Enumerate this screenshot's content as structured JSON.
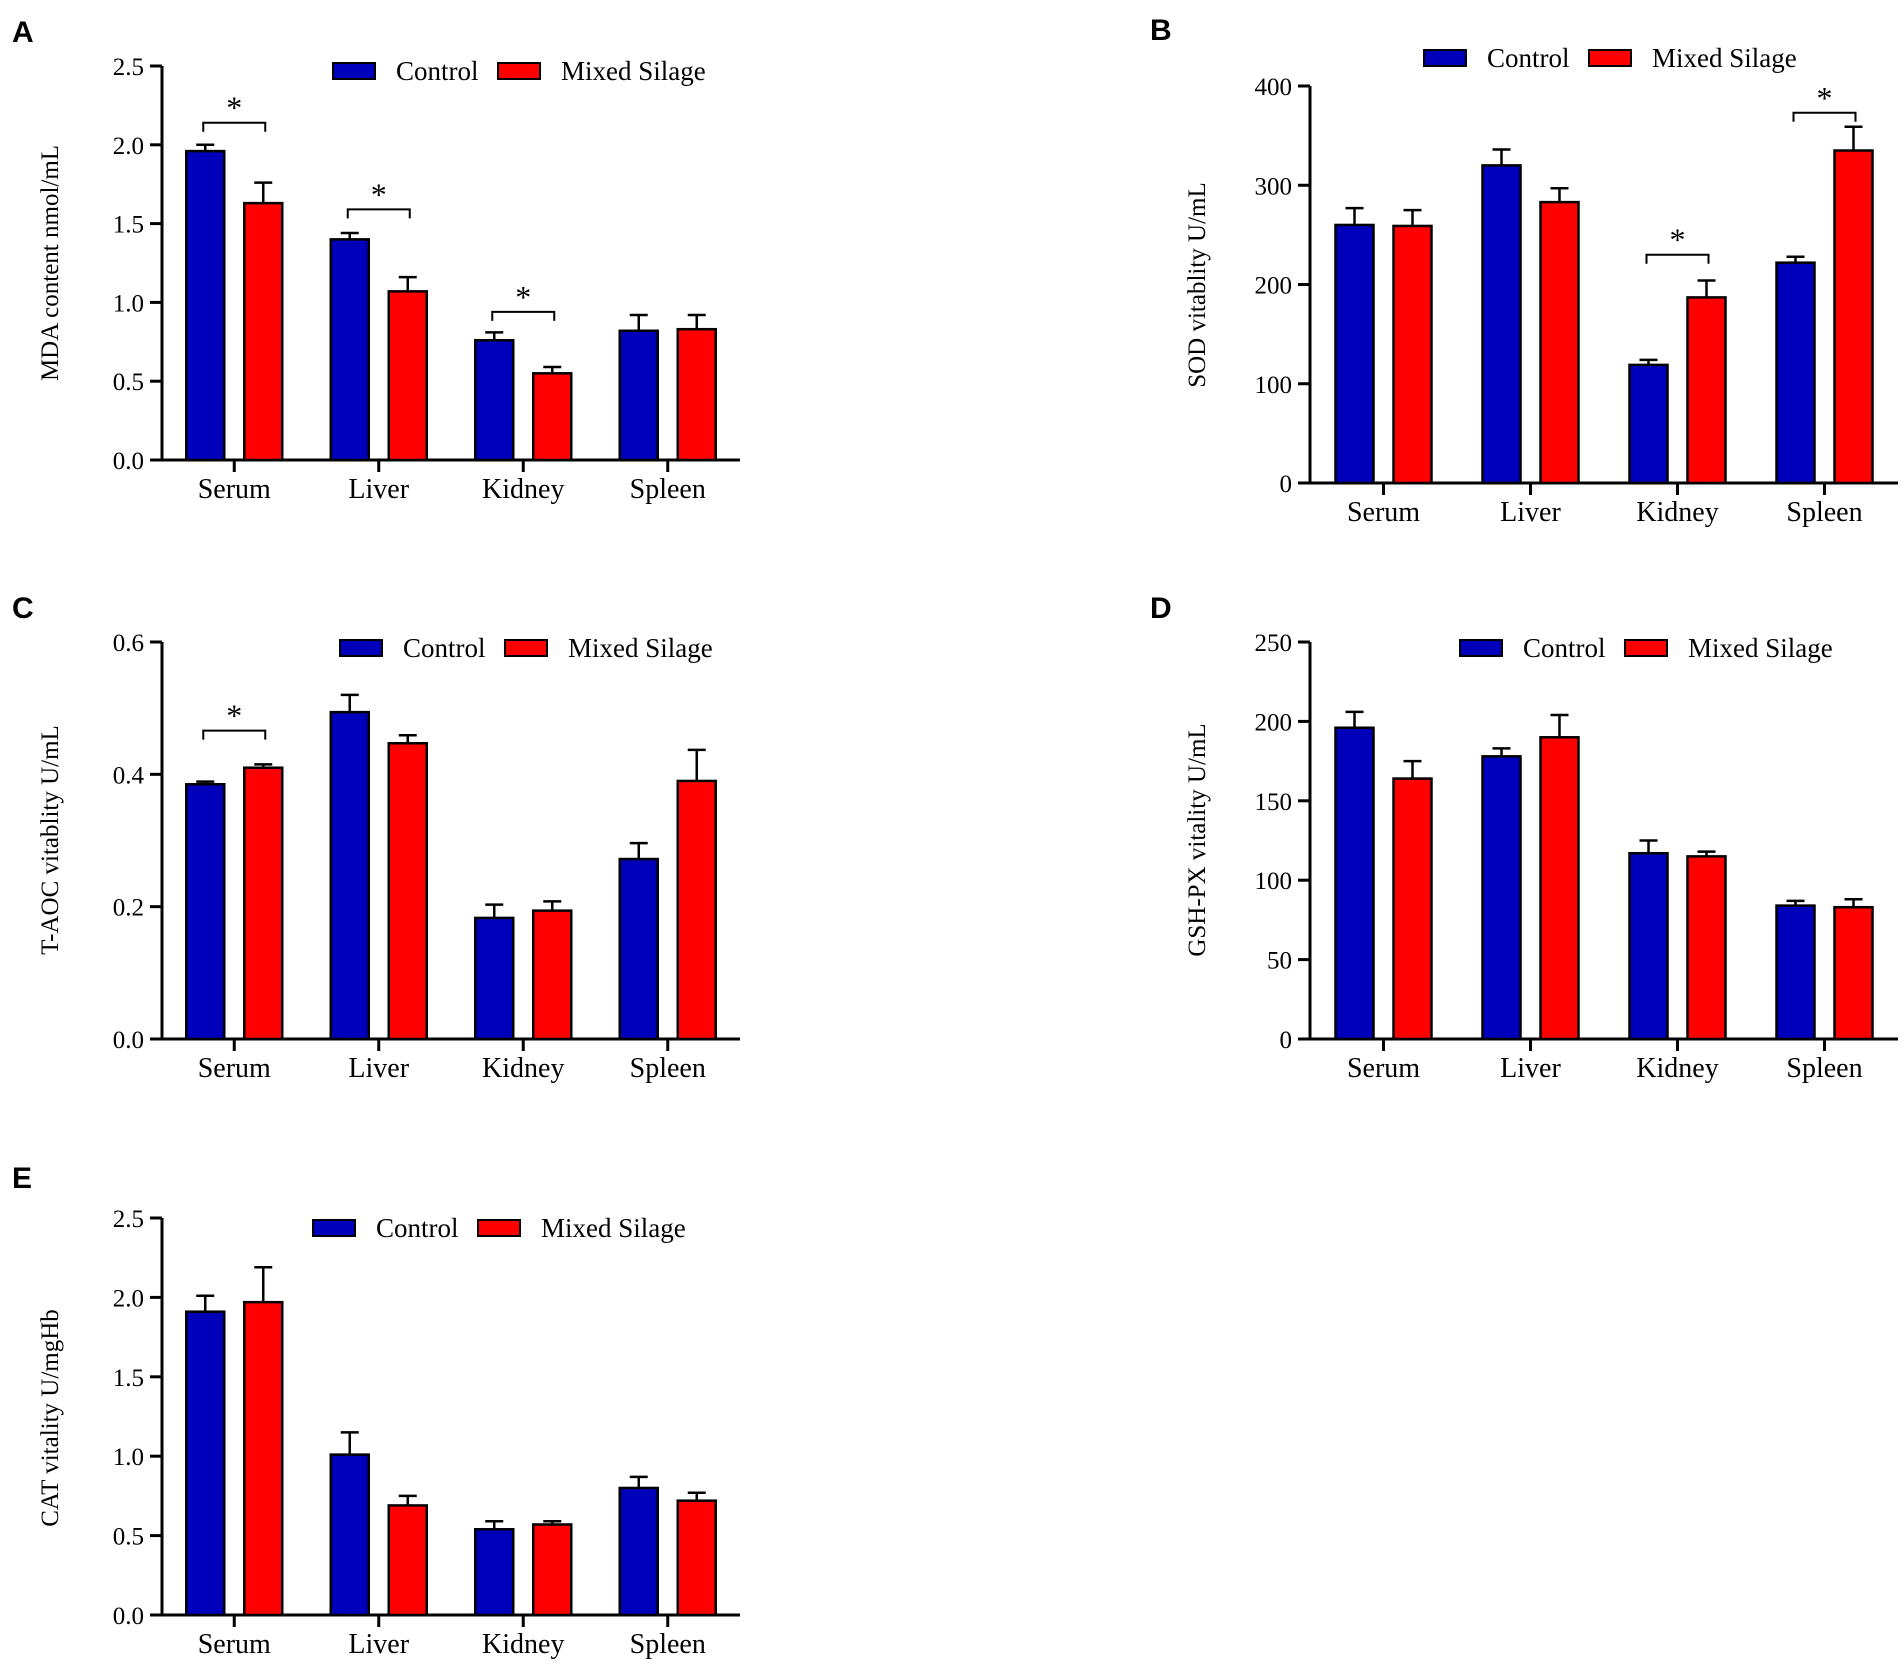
{
  "colors": {
    "control": "#0000bb",
    "treatment": "#ff0000",
    "axis": "#000000"
  },
  "legend": {
    "control": "Control",
    "treatment": "Mixed Silage"
  },
  "chart_data": [
    {
      "panel": "A",
      "type": "bar",
      "ylabel": "MDA content nmol/mL",
      "ylim": [
        0,
        2.5
      ],
      "yticks": [
        "0.0",
        "0.5",
        "1.0",
        "1.5",
        "2.0",
        "2.5"
      ],
      "categories": [
        "Serum",
        "Liver",
        "Kidney",
        "Spleen"
      ],
      "series": [
        {
          "name": "Control",
          "values": [
            1.96,
            1.4,
            0.76,
            0.82
          ],
          "errors": [
            0.04,
            0.04,
            0.05,
            0.1
          ]
        },
        {
          "name": "Mixed Silage",
          "values": [
            1.63,
            1.07,
            0.55,
            0.83
          ],
          "errors": [
            0.13,
            0.09,
            0.04,
            0.09
          ]
        }
      ],
      "significance": [
        {
          "category": 0,
          "label": "*",
          "level": 2.14
        },
        {
          "category": 1,
          "label": "*",
          "level": 1.59
        },
        {
          "category": 2,
          "label": "*",
          "level": 0.94
        }
      ]
    },
    {
      "panel": "B",
      "type": "bar",
      "ylabel": "SOD vitablity U/mL",
      "ylim": [
        0,
        400
      ],
      "yticks": [
        "0",
        "100",
        "200",
        "300",
        "400"
      ],
      "categories": [
        "Serum",
        "Liver",
        "Kidney",
        "Spleen"
      ],
      "series": [
        {
          "name": "Control",
          "values": [
            260,
            320,
            119,
            222
          ],
          "errors": [
            17,
            16,
            5,
            6
          ]
        },
        {
          "name": "Mixed Silage",
          "values": [
            259,
            283,
            187,
            335
          ],
          "errors": [
            16,
            14,
            17,
            24
          ]
        }
      ],
      "significance": [
        {
          "category": 2,
          "label": "*",
          "level": 230
        },
        {
          "category": 3,
          "label": "*",
          "level": 373
        }
      ]
    },
    {
      "panel": "C",
      "type": "bar",
      "ylabel": "T-AOC vitablity  U/mL",
      "ylim": [
        0,
        0.6
      ],
      "yticks": [
        "0.0",
        "0.2",
        "0.4",
        "0.6"
      ],
      "categories": [
        "Serum",
        "Liver",
        "Kidney",
        "Spleen"
      ],
      "series": [
        {
          "name": "Control",
          "values": [
            0.385,
            0.494,
            0.183,
            0.272
          ],
          "errors": [
            0.004,
            0.026,
            0.02,
            0.024
          ]
        },
        {
          "name": "Mixed Silage",
          "values": [
            0.41,
            0.447,
            0.194,
            0.39
          ],
          "errors": [
            0.005,
            0.012,
            0.014,
            0.047
          ]
        }
      ],
      "significance": [
        {
          "category": 0,
          "label": "*",
          "level": 0.466
        }
      ]
    },
    {
      "panel": "D",
      "type": "bar",
      "ylabel": "GSH-PX vitality  U/mL",
      "ylim": [
        0,
        250
      ],
      "yticks": [
        "0",
        "50",
        "100",
        "150",
        "200",
        "250"
      ],
      "categories": [
        "Serum",
        "Liver",
        "Kidney",
        "Spleen"
      ],
      "series": [
        {
          "name": "Control",
          "values": [
            196,
            178,
            117,
            84
          ],
          "errors": [
            10,
            5,
            8,
            3
          ]
        },
        {
          "name": "Mixed Silage",
          "values": [
            164,
            190,
            115,
            83
          ],
          "errors": [
            11,
            14,
            3,
            5
          ]
        }
      ],
      "significance": []
    },
    {
      "panel": "E",
      "type": "bar",
      "ylabel": "CAT vitality  U/mgHb",
      "ylim": [
        0,
        2.5
      ],
      "yticks": [
        "0.0",
        "0.5",
        "1.0",
        "1.5",
        "2.0",
        "2.5"
      ],
      "categories": [
        "Serum",
        "Liver",
        "Kidney",
        "Spleen"
      ],
      "series": [
        {
          "name": "Control",
          "values": [
            1.91,
            1.01,
            0.54,
            0.8
          ],
          "errors": [
            0.1,
            0.14,
            0.05,
            0.07
          ]
        },
        {
          "name": "Mixed Silage",
          "values": [
            1.97,
            0.69,
            0.57,
            0.72
          ],
          "errors": [
            0.22,
            0.06,
            0.02,
            0.05
          ]
        }
      ],
      "significance": []
    }
  ]
}
